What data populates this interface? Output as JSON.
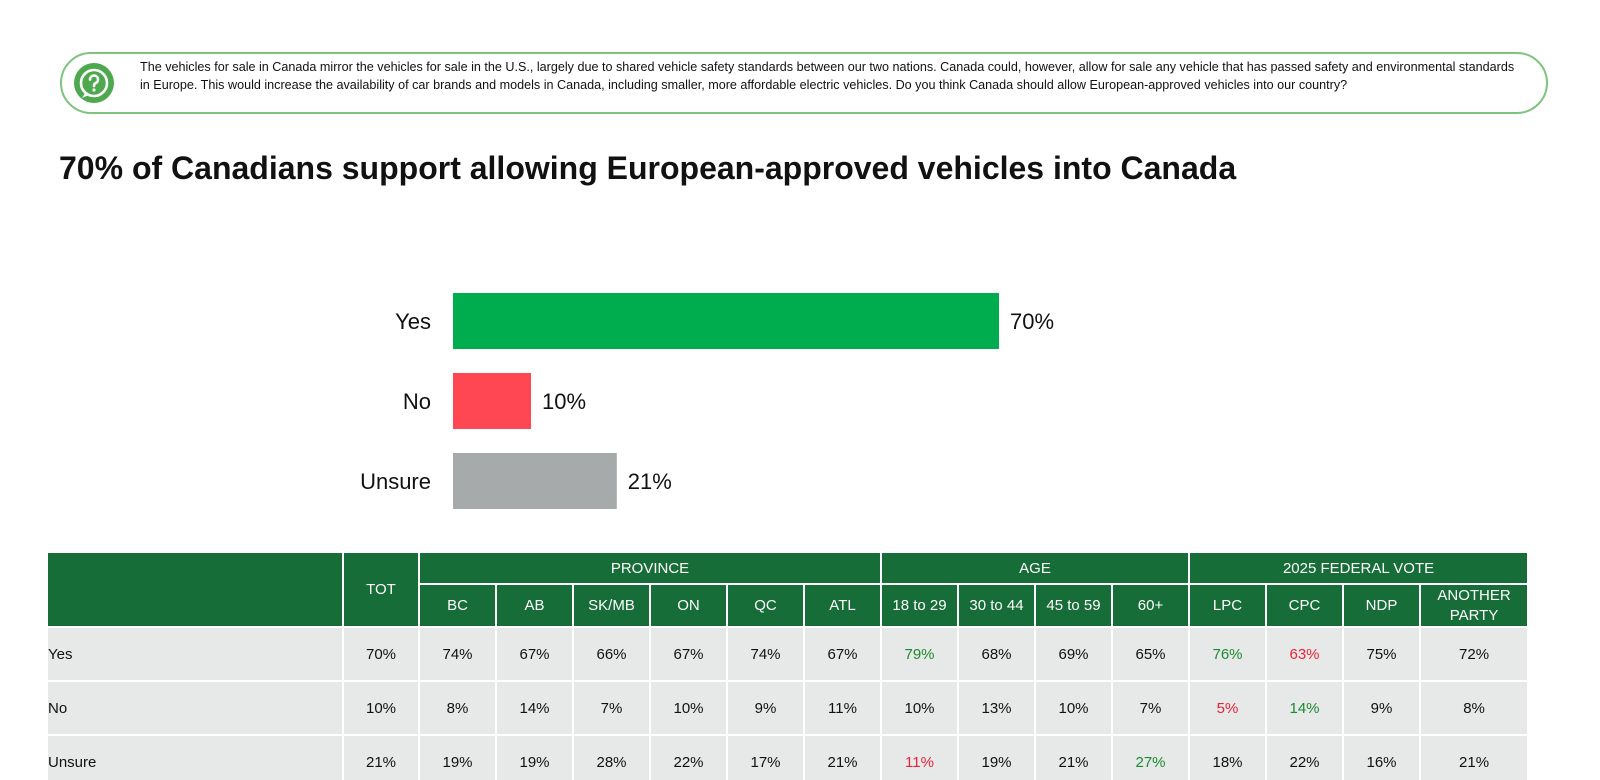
{
  "question": {
    "icon": "question-bubble-icon",
    "text": "The vehicles for sale in Canada mirror the vehicles for sale in the U.S., largely due to shared vehicle safety standards between our two nations. Canada could, however, allow for sale any vehicle that has passed safety and environmental standards in Europe. This would increase the availability of car brands and models in Canada, including smaller, more affordable electric vehicles. Do you think Canada should allow European-approved vehicles into our country?"
  },
  "title": "70% of Canadians support allowing European-approved vehicles into Canada",
  "chart_data": {
    "type": "bar",
    "orientation": "horizontal",
    "title": "70% of Canadians support allowing European-approved vehicles into Canada",
    "categories": [
      "Yes",
      "No",
      "Unsure"
    ],
    "values": [
      70,
      10,
      21
    ],
    "labels": [
      "70%",
      "10%",
      "21%"
    ],
    "colors": [
      "#00ad4e",
      "#ff4754",
      "#a6aaab"
    ],
    "xlabel": "",
    "ylabel": "",
    "xlim": [
      0,
      100
    ],
    "grid": false,
    "legend": "none"
  },
  "table": {
    "tot_label": "TOT",
    "groups": [
      {
        "label": "PROVINCE",
        "span": 6
      },
      {
        "label": "AGE",
        "span": 4
      },
      {
        "label": "2025 FEDERAL VOTE",
        "span": 4
      }
    ],
    "columns": [
      "BC",
      "AB",
      "SK/MB",
      "ON",
      "QC",
      "ATL",
      "18 to 29",
      "30 to 44",
      "45 to 59",
      "60+",
      "LPC",
      "CPC",
      "NDP",
      "ANOTHER PARTY"
    ],
    "rows": [
      {
        "label": "Yes",
        "tot": "70%",
        "values": [
          "74%",
          "67%",
          "66%",
          "67%",
          "74%",
          "67%",
          "79%",
          "68%",
          "69%",
          "65%",
          "76%",
          "63%",
          "75%",
          "72%"
        ],
        "flags": [
          "",
          "",
          "",
          "",
          "",
          "",
          "hi",
          "",
          "",
          "",
          "hi",
          "lo",
          "",
          ""
        ]
      },
      {
        "label": "No",
        "tot": "10%",
        "values": [
          "8%",
          "14%",
          "7%",
          "10%",
          "9%",
          "11%",
          "10%",
          "13%",
          "10%",
          "7%",
          "5%",
          "14%",
          "9%",
          "8%"
        ],
        "flags": [
          "",
          "",
          "",
          "",
          "",
          "",
          "",
          "",
          "",
          "",
          "lo",
          "hi",
          "",
          ""
        ]
      },
      {
        "label": "Unsure",
        "tot": "21%",
        "values": [
          "19%",
          "19%",
          "28%",
          "22%",
          "17%",
          "21%",
          "11%",
          "19%",
          "21%",
          "27%",
          "18%",
          "22%",
          "16%",
          "21%"
        ],
        "flags": [
          "",
          "",
          "",
          "",
          "",
          "",
          "lo",
          "",
          "",
          "hi",
          "",
          "",
          "",
          ""
        ]
      }
    ],
    "highlight_colors": {
      "hi": "#1d8a32",
      "lo": "#e8233a"
    }
  }
}
